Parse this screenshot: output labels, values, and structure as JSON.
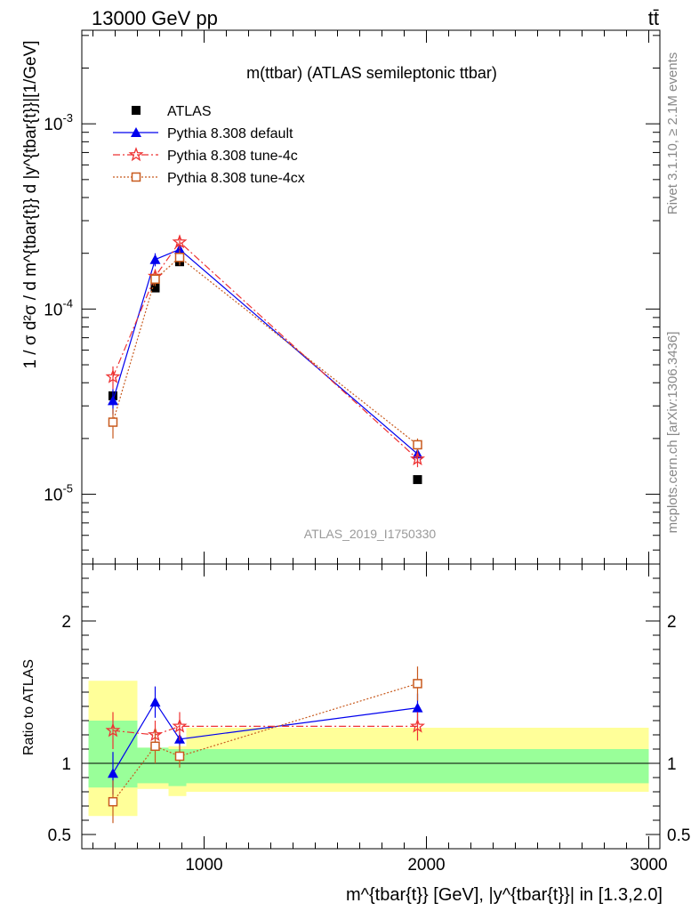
{
  "header": {
    "left": "13000 GeV pp",
    "right": "tt̄"
  },
  "side_labels": {
    "rivet": "Rivet 3.1.10, ≥ 2.1M events",
    "mcplots": "mcplots.cern.ch [arXiv:1306.3436]"
  },
  "chart_data": {
    "type": "scatter",
    "title": "m(ttbar) (ATLAS semileptonic ttbar)",
    "watermark": "ATLAS_2019_I1750330",
    "ylabel": "1 / σ d²σ / d m^{tbar{t}} d |y^{tbar{t}}|[1/GeV]",
    "xlabel": "m^{tbar{t}} [GeV], |y^{tbar{t}}| in [1.3,2.0]",
    "x_ticks": [
      "1000",
      "2000",
      "3000"
    ],
    "y_ticks": [
      "10^{-5}",
      "10^{-4}",
      "10^{-3}"
    ],
    "ratio_ylabel": "Ratio to ATLAS",
    "ratio_ticks": [
      "0.5",
      "1",
      "2"
    ],
    "xlim": [
      450,
      3050
    ],
    "ylim_log": [
      4.2e-06,
      0.0032
    ],
    "ratio_ylim": [
      0.4,
      2.4
    ],
    "y_log_scale": true,
    "bins": [
      {
        "lo": 480,
        "hi": 700
      },
      {
        "lo": 700,
        "hi": 840
      },
      {
        "lo": 840,
        "hi": 920
      },
      {
        "lo": 920,
        "hi": 3000
      }
    ],
    "ratio_band_inner": [
      [
        0.83,
        1.3
      ],
      [
        0.86,
        1.11
      ],
      [
        0.84,
        1.1
      ],
      [
        0.86,
        1.1
      ]
    ],
    "ratio_band_outer": [
      [
        0.63,
        1.58
      ],
      [
        0.82,
        1.11
      ],
      [
        0.77,
        1.12
      ],
      [
        0.8,
        1.25
      ]
    ],
    "x": [
      590,
      780,
      890,
      1960
    ],
    "series": [
      {
        "name": "ATLAS",
        "color": "#000000",
        "marker": "square-filled",
        "line": "none",
        "values": [
          3.4e-05,
          0.00013,
          0.00018,
          1.2e-05
        ],
        "errors": [
          1e-06,
          3e-06,
          4e-06,
          3e-07
        ]
      },
      {
        "name": "Pythia 8.308 default",
        "color": "#0000ee",
        "marker": "triangle-filled",
        "line": "solid",
        "values": [
          3.2e-05,
          0.000185,
          0.00021,
          1.65e-05
        ],
        "errors": [
          5e-06,
          1.5e-05,
          1.4e-05,
          1.5e-06
        ],
        "ratio": [
          0.93,
          1.43,
          1.17,
          1.39
        ],
        "ratio_err": [
          0.15,
          0.11,
          0.08,
          0.1
        ]
      },
      {
        "name": "Pythia 8.308 tune-4c",
        "color": "#ee3333",
        "marker": "star-open",
        "line": "dashdot",
        "values": [
          4.3e-05,
          0.00015,
          0.00023,
          1.55e-05
        ],
        "errors": [
          6e-06,
          1.3e-05,
          2e-05,
          1.5e-06
        ],
        "ratio": [
          1.23,
          1.2,
          1.26,
          1.26
        ],
        "ratio_err": [
          0.13,
          0.1,
          0.1,
          0.1
        ]
      },
      {
        "name": "Pythia 8.308 tune-4cx",
        "color": "#c85a1e",
        "marker": "square-open",
        "line": "dotted",
        "values": [
          2.45e-05,
          0.000145,
          0.00019,
          1.85e-05
        ],
        "errors": [
          4.5e-06,
          1.2e-05,
          1.8e-05,
          1.5e-06
        ],
        "ratio": [
          0.73,
          1.12,
          1.05,
          1.56
        ],
        "ratio_err": [
          0.15,
          0.12,
          0.08,
          0.12
        ]
      }
    ]
  }
}
